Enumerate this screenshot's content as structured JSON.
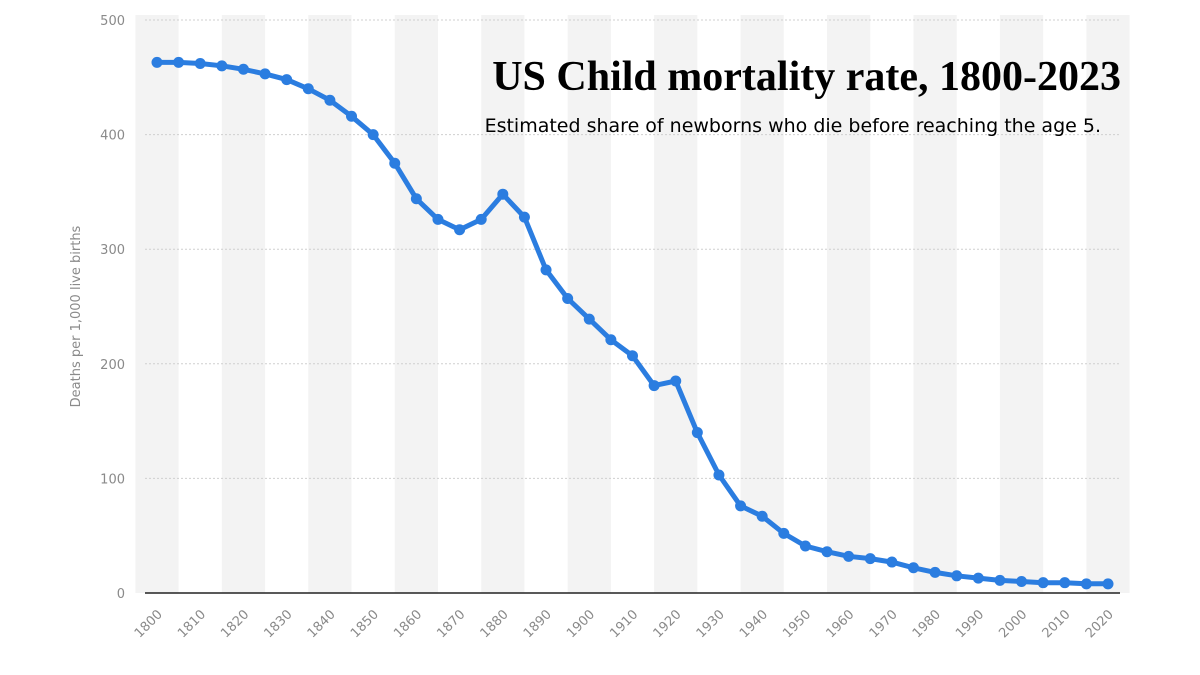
{
  "chart_data": {
    "type": "line",
    "title": "US Child mortality rate, 1800-2023",
    "subtitle": "Estimated share of newborns who die before reaching the age 5.",
    "xlabel": "",
    "ylabel": "Deaths per 1,000 live births",
    "xlim": [
      1800,
      2020
    ],
    "ylim": [
      0,
      500
    ],
    "y_ticks": [
      0,
      100,
      200,
      300,
      400,
      500
    ],
    "x_ticks": [
      1800,
      1810,
      1820,
      1830,
      1840,
      1850,
      1860,
      1870,
      1880,
      1890,
      1900,
      1910,
      1920,
      1930,
      1940,
      1950,
      1960,
      1970,
      1980,
      1990,
      2000,
      2010,
      2020
    ],
    "grid": true,
    "colors": {
      "line": "#2b7de0",
      "band": "#f3f3f3",
      "grid": "#cfcfcf",
      "axis": "#222222"
    },
    "series": [
      {
        "name": "Child mortality",
        "x": [
          1800,
          1805,
          1810,
          1815,
          1820,
          1825,
          1830,
          1835,
          1840,
          1845,
          1850,
          1855,
          1860,
          1865,
          1870,
          1875,
          1880,
          1885,
          1890,
          1895,
          1900,
          1905,
          1910,
          1915,
          1920,
          1925,
          1930,
          1935,
          1940,
          1945,
          1950,
          1955,
          1960,
          1965,
          1970,
          1975,
          1980,
          1985,
          1990,
          1995,
          2000,
          2005,
          2010,
          2015,
          2020
        ],
        "values": [
          463,
          463,
          462,
          460,
          457,
          453,
          448,
          440,
          430,
          416,
          400,
          375,
          344,
          326,
          317,
          326,
          348,
          328,
          282,
          257,
          239,
          221,
          207,
          181,
          185,
          140,
          103,
          76,
          67,
          52,
          41,
          36,
          32,
          30,
          27,
          22,
          18,
          15,
          13,
          11,
          10,
          9,
          9,
          8,
          8
        ]
      }
    ]
  }
}
